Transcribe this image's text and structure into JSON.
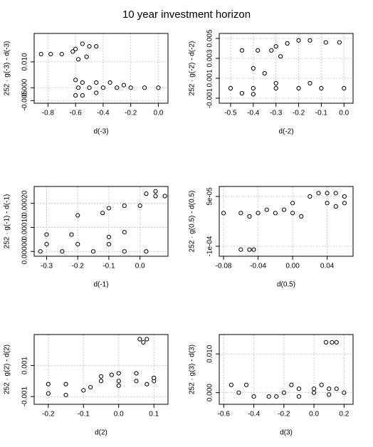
{
  "title": "10 year investment horizon",
  "chart_data": [
    {
      "type": "scatter",
      "x_label": "d(-3)",
      "y_label": "252 · g(-3) - d(-3)",
      "xlim": [
        -0.9,
        0.07
      ],
      "ylim": [
        -0.006,
        0.021
      ],
      "xticks": [
        -0.8,
        -0.6,
        -0.4,
        -0.2,
        {
          "value": 0,
          "label": "0.0"
        }
      ],
      "yticks": [
        -0.005,
        {
          "value": 0,
          "label": "0.000"
        },
        {
          "value": 0.01,
          "label": "0.010"
        }
      ],
      "x": [
        -0.85,
        -0.78,
        -0.7,
        -0.62,
        -0.6,
        -0.55,
        -0.5,
        -0.45,
        -0.58,
        -0.52,
        -0.6,
        -0.55,
        -0.58,
        -0.5,
        -0.4,
        -0.3,
        -0.2,
        -0.1,
        0.0,
        -0.45,
        -0.35,
        -0.25,
        -0.55,
        -0.45,
        -0.6
      ],
      "values": [
        0.013,
        0.013,
        0.013,
        0.014,
        0.015,
        0.017,
        0.016,
        0.016,
        0.011,
        0.012,
        0.003,
        0.002,
        0.0,
        0.0,
        0.0,
        0.0,
        0.0,
        0.0,
        0.0,
        0.002,
        0.002,
        0.001,
        -0.003,
        -0.002,
        -0.003
      ]
    },
    {
      "type": "scatter",
      "x_label": "d(-2)",
      "y_label": "252 · g(-2) - d(-2)",
      "xlim": [
        -0.55,
        0.04
      ],
      "ylim": [
        -0.0015,
        0.0055
      ],
      "xticks": [
        -0.5,
        -0.4,
        -0.3,
        -0.2,
        -0.1,
        {
          "value": 0,
          "label": "0.0"
        }
      ],
      "yticks": [
        -0.001,
        0.001,
        0.003,
        0.005
      ],
      "x": [
        -0.45,
        -0.38,
        -0.32,
        -0.3,
        -0.25,
        -0.2,
        -0.15,
        -0.08,
        -0.02,
        -0.28,
        -0.4,
        -0.35,
        -0.5,
        -0.4,
        -0.3,
        -0.2,
        -0.1,
        0.0,
        -0.3,
        -0.15,
        -0.45,
        -0.4
      ],
      "values": [
        0.0038,
        0.0038,
        0.0038,
        0.0042,
        0.0045,
        0.0048,
        0.0048,
        0.0046,
        0.0046,
        0.0032,
        0.002,
        0.0015,
        0.0,
        0.0,
        0.0,
        0.0,
        0.0,
        0.0,
        0.0005,
        0.0005,
        -0.0005,
        -0.0006
      ]
    },
    {
      "type": "scatter",
      "x_label": "d(-1)",
      "y_label": "252 · g(-1) - d(-1)",
      "xlim": [
        -0.34,
        0.09
      ],
      "ylim": [
        -2e-05,
        0.00027
      ],
      "xticks": [
        -0.3,
        -0.2,
        -0.1,
        {
          "value": 0,
          "label": "0.0"
        }
      ],
      "yticks": [
        {
          "value": 0,
          "label": "0.00000"
        },
        {
          "value": 0.0001,
          "label": "0.00010"
        },
        {
          "value": 0.0002,
          "label": "0.00020"
        }
      ],
      "x": [
        -0.32,
        -0.25,
        -0.15,
        -0.05,
        0.02,
        -0.3,
        -0.2,
        -0.1,
        -0.3,
        -0.22,
        -0.1,
        -0.05,
        -0.2,
        -0.12,
        -0.1,
        -0.05,
        0.0,
        0.02,
        0.05,
        0.05,
        0.08
      ],
      "values": [
        0.0,
        0.0,
        0.0,
        0.0,
        0.0,
        3e-05,
        3e-05,
        3e-05,
        7e-05,
        7e-05,
        6e-05,
        8e-05,
        0.00015,
        0.00016,
        0.00018,
        0.00019,
        0.00019,
        0.00024,
        0.00023,
        0.00025,
        0.00023
      ]
    },
    {
      "type": "scatter",
      "x_label": "d(0.5)",
      "y_label": "252 · g(0.5) - d(0.5)",
      "xlim": [
        -0.085,
        0.07
      ],
      "ylim": [
        -0.00013,
        8e-05
      ],
      "xticks": [
        -0.08,
        -0.04,
        {
          "value": 0,
          "label": "0.00"
        },
        0.04
      ],
      "yticks": [
        {
          "value": -0.0001,
          "label": "-1e-04"
        },
        {
          "value": 5e-05,
          "label": "5e-05"
        }
      ],
      "x": [
        -0.08,
        -0.06,
        -0.04,
        -0.02,
        0.0,
        0.01,
        -0.05,
        -0.03,
        -0.01,
        0.0,
        0.02,
        0.03,
        0.04,
        0.05,
        0.06,
        0.04,
        0.05,
        0.06,
        -0.06,
        -0.05,
        -0.045
      ],
      "values": [
        0.0,
        0.0,
        0.0,
        0.0,
        0.0,
        -1e-05,
        -1e-05,
        1e-05,
        1e-05,
        3e-05,
        5e-05,
        6e-05,
        6e-05,
        6e-05,
        5e-05,
        3e-05,
        2e-05,
        3e-05,
        -0.00011,
        -0.00011,
        -0.00011
      ]
    },
    {
      "type": "scatter",
      "x_label": "d(2)",
      "y_label": "252 · g(2) - d(2)",
      "xlim": [
        -0.24,
        0.14
      ],
      "ylim": [
        -0.0015,
        0.003
      ],
      "xticks": [
        -0.2,
        -0.1,
        {
          "value": 0,
          "label": "0.0"
        },
        0.1
      ],
      "yticks": [
        -0.001,
        0.001
      ],
      "x": [
        0.06,
        0.08,
        0.07,
        -0.2,
        -0.15,
        -0.2,
        -0.15,
        -0.1,
        -0.08,
        -0.05,
        0.0,
        0.05,
        0.1,
        -0.05,
        0.0,
        0.05,
        0.1,
        -0.02,
        0.0,
        0.08
      ],
      "values": [
        0.0027,
        0.0027,
        0.0025,
        -0.0002,
        -0.0002,
        -0.0008,
        -0.0009,
        -0.0006,
        -0.0004,
        0.0,
        0.0,
        0.0,
        0.0,
        0.0003,
        0.0005,
        0.0005,
        0.0002,
        0.0004,
        -0.0003,
        -0.0002
      ]
    },
    {
      "type": "scatter",
      "x_label": "d(3)",
      "y_label": "252 · g(3) - d(3)",
      "xlim": [
        -0.63,
        0.26
      ],
      "ylim": [
        -0.003,
        0.015
      ],
      "xticks": [
        -0.6,
        -0.4,
        -0.2,
        {
          "value": 0,
          "label": "0.0"
        },
        0.2
      ],
      "yticks": [
        {
          "value": 0,
          "label": "0.000"
        },
        {
          "value": 0.01,
          "label": "0.010"
        }
      ],
      "x": [
        0.08,
        0.12,
        0.15,
        -0.55,
        -0.45,
        -0.5,
        -0.4,
        -0.3,
        -0.2,
        -0.15,
        -0.1,
        0.0,
        0.05,
        0.1,
        0.15,
        0.2,
        -0.1,
        0.1,
        -0.25,
        0.0
      ],
      "values": [
        0.013,
        0.013,
        0.013,
        0.002,
        0.002,
        0.0,
        -0.001,
        -0.001,
        0.0,
        0.002,
        0.001,
        0.0,
        0.002,
        0.001,
        0.001,
        0.0,
        -0.001,
        -0.0005,
        -0.001,
        0.001
      ]
    }
  ]
}
